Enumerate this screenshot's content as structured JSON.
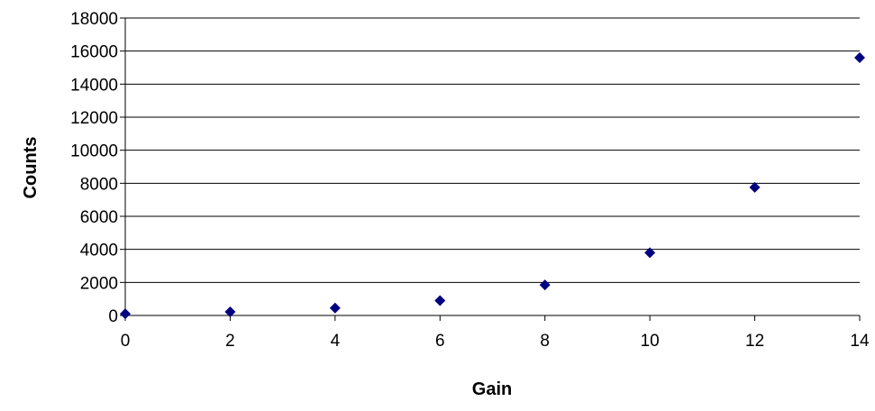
{
  "chart_data": {
    "type": "scatter",
    "xlabel": "Gain",
    "ylabel": "Counts",
    "xlim": [
      0,
      14
    ],
    "ylim": [
      0,
      18000
    ],
    "x_ticks": [
      0,
      2,
      4,
      6,
      8,
      10,
      12,
      14
    ],
    "y_ticks": [
      0,
      2000,
      4000,
      6000,
      8000,
      10000,
      12000,
      14000,
      16000,
      18000
    ],
    "grid": "horizontal",
    "legend": "none",
    "marker": "diamond",
    "marker_color": "#000080",
    "series": [
      {
        "x": [
          0,
          2,
          4,
          6,
          8,
          10,
          12,
          14
        ],
        "y": [
          100,
          220,
          450,
          900,
          1850,
          3800,
          7750,
          15600
        ]
      }
    ]
  }
}
